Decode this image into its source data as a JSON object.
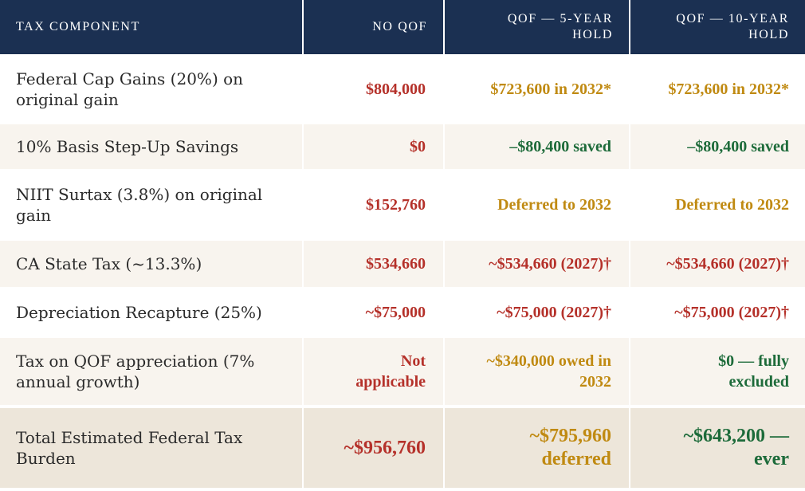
{
  "colors": {
    "header_bg": "#1b3052",
    "red": "#b5312a",
    "gold": "#c08a12",
    "green": "#1d6b3a"
  },
  "header": {
    "component": "TAX COMPONENT",
    "no_qof": "NO QOF",
    "qof_5_line1": "QOF — 5-YEAR",
    "qof_5_line2": "HOLD",
    "qof_10_line1": "QOF — 10-YEAR",
    "qof_10_line2": "HOLD"
  },
  "rows": [
    {
      "label_line1": "Federal Cap Gains (20%) on",
      "label_line2": "original gain",
      "no_qof": "$804,000",
      "qof5": "$723,600 in 2032*",
      "qof10": "$723,600 in 2032*"
    },
    {
      "label": "10% Basis Step-Up Savings",
      "no_qof": "$0",
      "qof5": "–$80,400 saved",
      "qof10": "–$80,400 saved"
    },
    {
      "label_line1": "NIIT Surtax (3.8%) on original",
      "label_line2": "gain",
      "no_qof": "$152,760",
      "qof5": "Deferred to 2032",
      "qof10": "Deferred to 2032"
    },
    {
      "label": "CA State Tax (~13.3%)",
      "no_qof": "$534,660",
      "qof5": "~$534,660 (2027)†",
      "qof10": "~$534,660 (2027)†"
    },
    {
      "label": "Depreciation Recapture (25%)",
      "no_qof": "~$75,000",
      "qof5": "~$75,000 (2027)†",
      "qof10": "~$75,000 (2027)†"
    },
    {
      "label_line1": "Tax on QOF appreciation (7%",
      "label_line2": "annual growth)",
      "no_qof_line1": "Not",
      "no_qof_line2": "applicable",
      "qof5_line1": "~$340,000 owed in",
      "qof5_line2": "2032",
      "qof10_line1": "$0 — fully",
      "qof10_line2": "excluded"
    }
  ],
  "total": {
    "label": "Total Estimated Federal Tax Burden",
    "no_qof": "~$956,760",
    "qof5_line1": "~$795,960",
    "qof5_line2": "deferred",
    "qof10_line1": "~$643,200 —",
    "qof10_line2": "ever"
  }
}
